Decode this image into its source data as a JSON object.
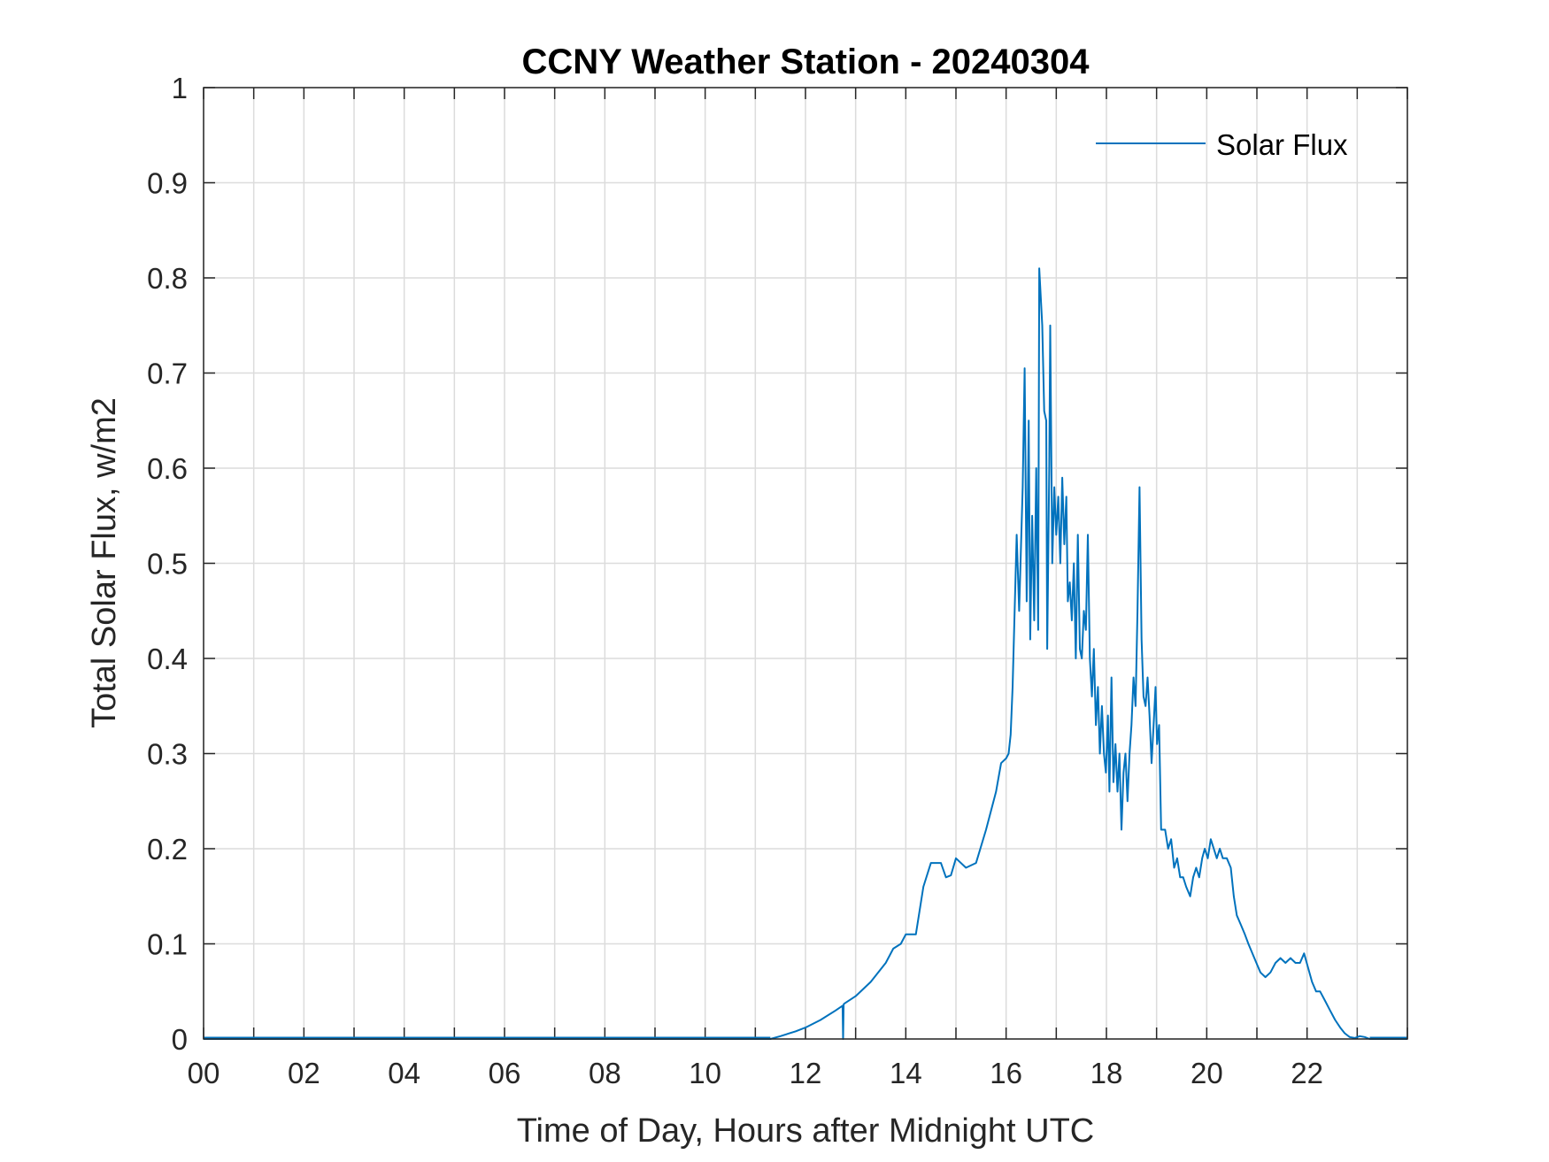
{
  "chart_data": {
    "type": "line",
    "title": "CCNY Weather Station - 20240304",
    "xlabel": "Time of Day, Hours after Midnight UTC",
    "ylabel": "Total Solar Flux, w/m2",
    "xlim": [
      0,
      24
    ],
    "ylim": [
      0,
      1
    ],
    "xticks": [
      0,
      2,
      4,
      6,
      8,
      10,
      12,
      14,
      16,
      18,
      20,
      22
    ],
    "xtick_labels": [
      "00",
      "02",
      "04",
      "06",
      "08",
      "10",
      "12",
      "14",
      "16",
      "18",
      "20",
      "22"
    ],
    "yticks": [
      0,
      0.1,
      0.2,
      0.3,
      0.4,
      0.5,
      0.6,
      0.7,
      0.8,
      0.9,
      1
    ],
    "ytick_labels": [
      "0",
      "0.1",
      "0.2",
      "0.3",
      "0.4",
      "0.5",
      "0.6",
      "0.7",
      "0.8",
      "0.9",
      "1"
    ],
    "grid": true,
    "legend": {
      "entries": [
        "Solar Flux"
      ],
      "placement": "top-right"
    },
    "series": [
      {
        "name": "Solar Flux",
        "color": "#0072BD",
        "x": [
          0,
          11.3,
          11.5,
          11.8,
          12.0,
          12.3,
          12.6,
          12.74,
          12.75,
          12.76,
          12.77,
          13.0,
          13.3,
          13.6,
          13.75,
          13.9,
          14.0,
          14.2,
          14.35,
          14.5,
          14.7,
          14.8,
          14.9,
          15.0,
          15.2,
          15.4,
          15.6,
          15.8,
          15.9,
          16.0,
          16.05,
          16.09,
          16.13,
          16.21,
          16.26,
          16.33,
          16.37,
          16.41,
          16.45,
          16.48,
          16.52,
          16.56,
          16.6,
          16.64,
          16.66,
          16.72,
          16.76,
          16.8,
          16.82,
          16.86,
          16.88,
          16.92,
          16.96,
          17.0,
          17.04,
          17.08,
          17.12,
          17.16,
          17.2,
          17.23,
          17.27,
          17.31,
          17.35,
          17.39,
          17.43,
          17.47,
          17.51,
          17.55,
          17.59,
          17.63,
          17.67,
          17.71,
          17.75,
          17.79,
          17.83,
          17.87,
          17.91,
          17.95,
          17.99,
          18.03,
          18.06,
          18.1,
          18.14,
          18.18,
          18.22,
          18.26,
          18.3,
          18.34,
          18.38,
          18.42,
          18.46,
          18.5,
          18.54,
          18.58,
          18.62,
          18.66,
          18.7,
          18.74,
          18.78,
          18.82,
          18.86,
          18.9,
          18.94,
          18.98,
          19.01,
          19.05,
          19.09,
          19.17,
          19.23,
          19.29,
          19.35,
          19.41,
          19.47,
          19.53,
          19.59,
          19.67,
          19.73,
          19.79,
          19.85,
          19.91,
          19.96,
          20.02,
          20.08,
          20.14,
          20.2,
          20.26,
          20.32,
          20.4,
          20.48,
          20.54,
          20.6,
          20.68,
          20.76,
          20.83,
          20.91,
          20.99,
          21.07,
          21.17,
          21.27,
          21.37,
          21.47,
          21.57,
          21.67,
          21.77,
          21.86,
          21.94,
          22.02,
          22.1,
          22.18,
          22.26,
          22.36,
          22.46,
          22.56,
          22.66,
          22.75,
          22.85,
          22.95,
          23.05,
          23.15,
          23.25,
          24
        ],
        "y": [
          0,
          0,
          0.003,
          0.008,
          0.012,
          0.02,
          0.03,
          0.035,
          0,
          0.036,
          0.037,
          0.045,
          0.06,
          0.08,
          0.095,
          0.1,
          0.11,
          0.11,
          0.16,
          0.185,
          0.185,
          0.17,
          0.172,
          0.19,
          0.18,
          0.185,
          0.22,
          0.26,
          0.29,
          0.295,
          0.3,
          0.32,
          0.37,
          0.53,
          0.45,
          0.58,
          0.705,
          0.46,
          0.65,
          0.42,
          0.55,
          0.44,
          0.6,
          0.43,
          0.81,
          0.75,
          0.66,
          0.65,
          0.41,
          0.6,
          0.75,
          0.5,
          0.58,
          0.53,
          0.57,
          0.5,
          0.59,
          0.52,
          0.57,
          0.46,
          0.48,
          0.44,
          0.5,
          0.4,
          0.53,
          0.41,
          0.4,
          0.45,
          0.43,
          0.53,
          0.4,
          0.36,
          0.41,
          0.33,
          0.37,
          0.3,
          0.35,
          0.3,
          0.28,
          0.34,
          0.26,
          0.38,
          0.27,
          0.31,
          0.26,
          0.3,
          0.22,
          0.28,
          0.3,
          0.25,
          0.3,
          0.33,
          0.38,
          0.35,
          0.45,
          0.58,
          0.42,
          0.36,
          0.35,
          0.38,
          0.34,
          0.29,
          0.33,
          0.37,
          0.31,
          0.33,
          0.22,
          0.22,
          0.2,
          0.21,
          0.18,
          0.19,
          0.17,
          0.17,
          0.16,
          0.15,
          0.17,
          0.18,
          0.17,
          0.19,
          0.2,
          0.19,
          0.21,
          0.2,
          0.19,
          0.2,
          0.19,
          0.19,
          0.18,
          0.15,
          0.13,
          0.12,
          0.11,
          0.1,
          0.09,
          0.08,
          0.07,
          0.065,
          0.07,
          0.08,
          0.085,
          0.08,
          0.085,
          0.08,
          0.08,
          0.09,
          0.075,
          0.06,
          0.05,
          0.05,
          0.04,
          0.03,
          0.02,
          0.012,
          0.006,
          0.002,
          0.001,
          0.003,
          0.002,
          0,
          0
        ]
      }
    ]
  }
}
